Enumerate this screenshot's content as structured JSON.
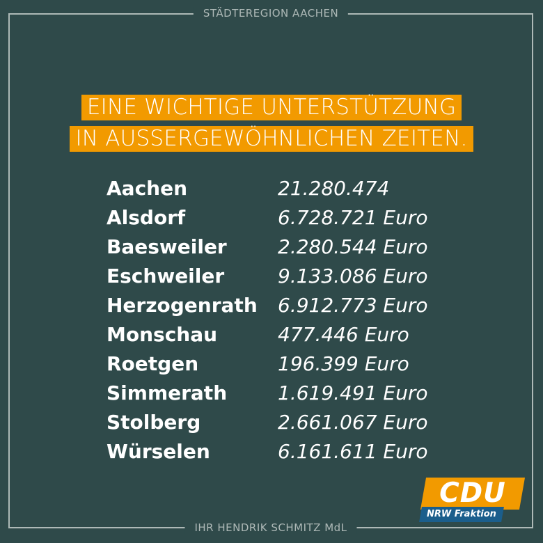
{
  "frame": {
    "top_label": "STÄDTEREGION AACHEN",
    "bottom_label": "IHR HENDRIK SCHMITZ MdL"
  },
  "headline": {
    "line1": "EINE WICHTIGE UNTERSTÜTZUNG",
    "line2": "IN AUSSERGEWÖHNLICHEN ZEITEN."
  },
  "rows": [
    {
      "city": "Aachen",
      "amount": "21.280.474"
    },
    {
      "city": "Alsdorf",
      "amount": "6.728.721 Euro"
    },
    {
      "city": "Baesweiler",
      "amount": "2.280.544 Euro"
    },
    {
      "city": "Eschweiler",
      "amount": "9.133.086 Euro"
    },
    {
      "city": "Herzogenrath",
      "amount": "6.912.773 Euro"
    },
    {
      "city": "Monschau",
      "amount": "477.446 Euro"
    },
    {
      "city": "Roetgen",
      "amount": "196.399 Euro"
    },
    {
      "city": "Simmerath",
      "amount": "1.619.491 Euro"
    },
    {
      "city": "Stolberg",
      "amount": "2.661.067 Euro"
    },
    {
      "city": "Würselen",
      "amount": "6.161.611 Euro"
    }
  ],
  "logo": {
    "party": "CDU",
    "subtitle": "NRW Fraktion"
  },
  "colors": {
    "background": "#2f4a4a",
    "accent": "#f29a00",
    "frame": "#aeb9b7",
    "logo_blue": "#1b5e8c"
  }
}
